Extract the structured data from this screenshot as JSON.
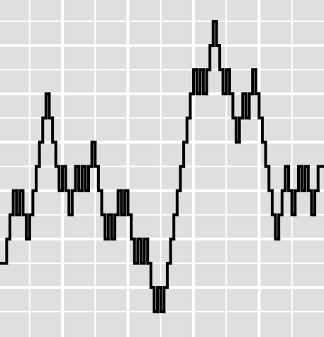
{
  "chart_data": {
    "type": "step",
    "x": [
      1,
      2,
      3,
      4,
      5,
      6,
      7,
      8,
      9,
      10,
      11,
      12,
      13,
      14,
      15,
      16,
      17,
      18,
      19,
      20,
      21,
      22,
      23,
      24,
      25,
      26,
      27,
      28,
      29,
      30,
      31,
      32,
      33,
      34,
      35,
      36,
      37,
      38,
      39,
      40,
      41,
      42,
      43,
      44,
      45,
      46,
      47,
      48,
      49,
      50,
      51,
      52,
      53,
      54,
      55,
      56,
      57,
      58,
      59,
      60,
      61,
      62,
      63,
      64,
      65,
      66,
      67,
      68,
      69,
      70,
      71,
      72,
      73,
      74,
      75,
      76,
      77,
      78,
      79,
      80,
      81,
      82,
      83,
      84,
      85,
      86,
      87,
      88,
      89,
      90,
      91,
      92,
      93,
      94,
      95,
      96,
      97,
      98,
      99
    ],
    "y": [
      -1,
      -1,
      0,
      1,
      2,
      1,
      2,
      1,
      0,
      1,
      2,
      3,
      4,
      5,
      6,
      5,
      4,
      3,
      2,
      3,
      2,
      1,
      2,
      3,
      2,
      3,
      2,
      3,
      4,
      3,
      2,
      1,
      0,
      1,
      0,
      1,
      2,
      1,
      2,
      1,
      0,
      -1,
      0,
      -1,
      0,
      -1,
      -2,
      -3,
      -2,
      -3,
      -2,
      -1,
      0,
      1,
      2,
      3,
      4,
      5,
      6,
      7,
      6,
      7,
      6,
      7,
      8,
      9,
      8,
      7,
      6,
      7,
      6,
      5,
      4,
      5,
      6,
      5,
      6,
      7,
      6,
      5,
      4,
      3,
      2,
      1,
      0,
      1,
      2,
      3,
      2,
      1,
      2,
      3,
      2,
      3,
      2,
      1,
      2,
      3,
      3
    ],
    "color": "#000000",
    "xlim": [
      0.97,
      99.8
    ],
    "ylim": [
      -4.05,
      9.88
    ],
    "xticks": [
      20,
      40,
      60,
      80
    ],
    "xticks_minor": [
      10,
      30,
      50,
      70,
      90
    ],
    "yticks": [
      -2,
      0,
      2,
      4,
      6,
      8
    ],
    "yticks_minor": [
      -3,
      -1,
      1,
      3,
      5,
      7,
      9
    ],
    "grid": true
  }
}
